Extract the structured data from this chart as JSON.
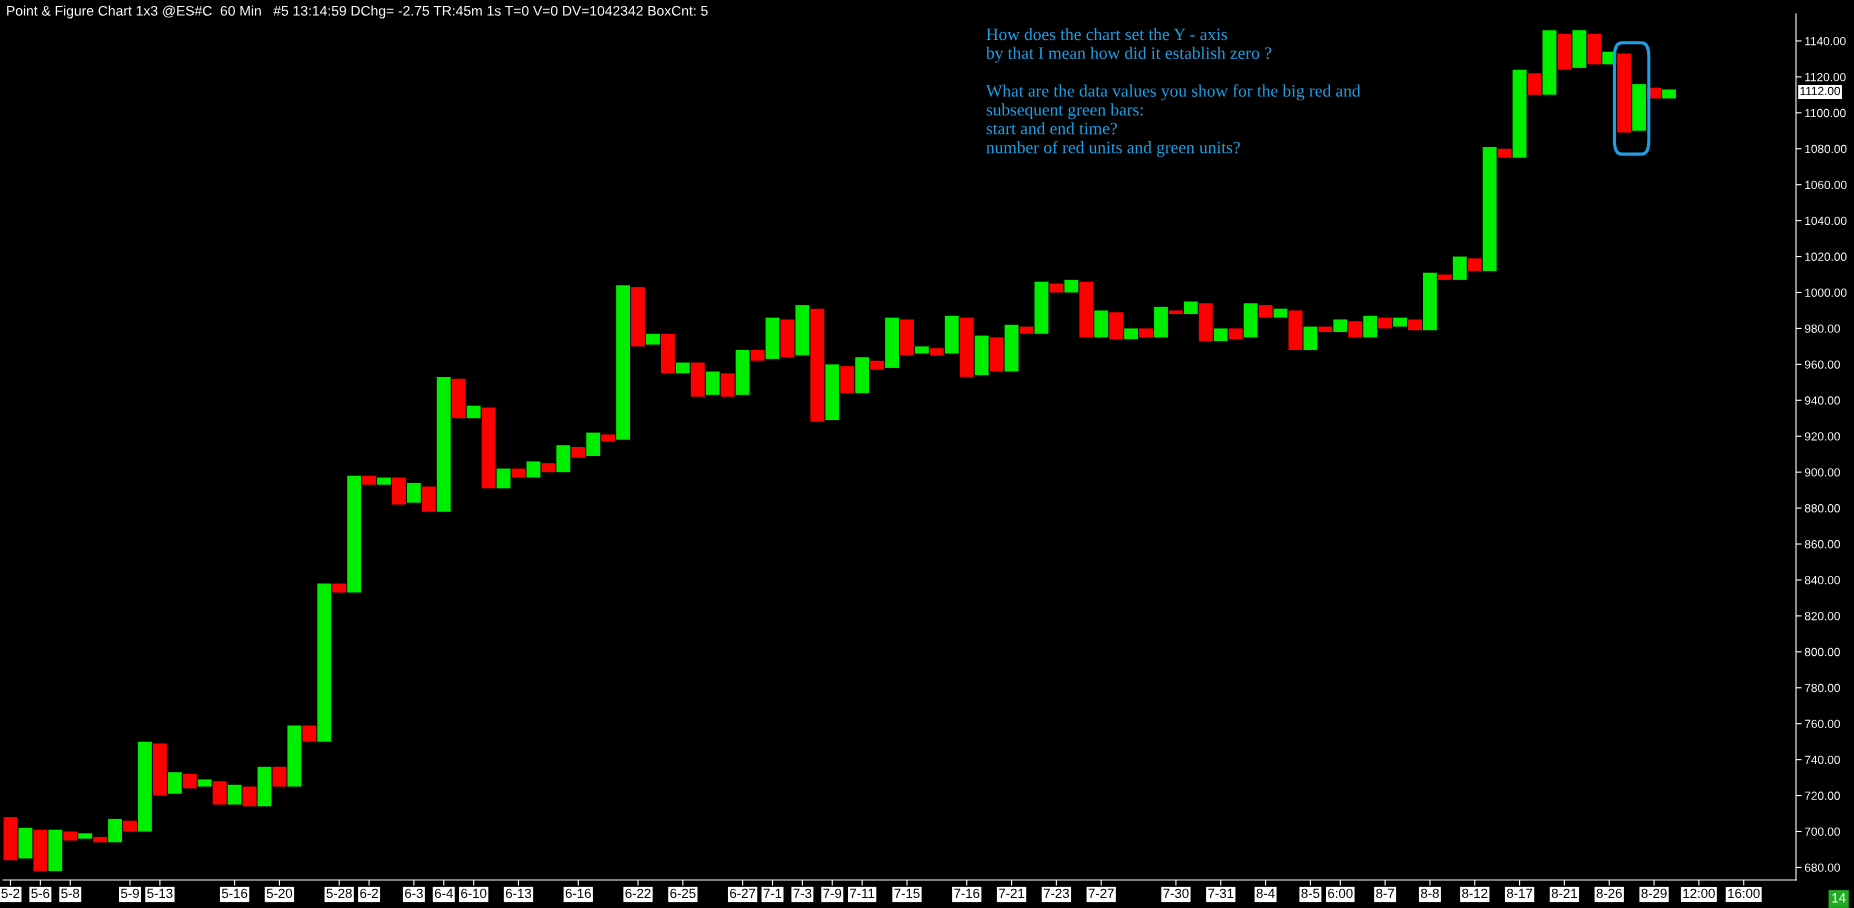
{
  "chart_data": {
    "type": "bar",
    "title": "Point & Figure Chart 1x3 @ES#C  60 Min   #5 13:14:59 DChg= -2.75 TR:45m 1s T=0 V=0 DV=1042342 BoxCnt: 5",
    "categories": [
      "5-2",
      null,
      "5-6",
      null,
      "5-8",
      null,
      null,
      null,
      "5-9",
      null,
      "5-13",
      null,
      null,
      null,
      null,
      "5-16",
      null,
      null,
      "5-20",
      null,
      null,
      null,
      "5-28",
      null,
      "6-2",
      null,
      null,
      "6-3",
      null,
      "6-4",
      null,
      "6-10",
      null,
      null,
      "6-13",
      null,
      null,
      null,
      "6-16",
      null,
      null,
      null,
      "6-22",
      null,
      null,
      "6-25",
      null,
      null,
      null,
      "6-27",
      null,
      "7-1",
      null,
      "7-3",
      null,
      "7-9",
      null,
      "7-11",
      null,
      null,
      "7-15",
      null,
      null,
      null,
      "7-16",
      null,
      null,
      "7-21",
      null,
      null,
      "7-23",
      null,
      null,
      "7-27",
      null,
      null,
      null,
      null,
      "7-30",
      null,
      null,
      "7-31",
      null,
      null,
      "8-4",
      null,
      null,
      "8-5",
      null,
      "6:00",
      null,
      null,
      "8-7",
      null,
      null,
      "8-8",
      null,
      null,
      "8-12",
      null,
      null,
      "8-17",
      null,
      null,
      "8-21",
      null,
      null,
      "8-26",
      null,
      null,
      "8-29",
      null,
      null,
      "12:00",
      null,
      null,
      "16:00",
      null,
      null,
      null
    ],
    "base": [
      684,
      685,
      678,
      678,
      695,
      696,
      694,
      694,
      700,
      700,
      720,
      721,
      724,
      725,
      715,
      715,
      714,
      714,
      725,
      725,
      750,
      750,
      833,
      833,
      893,
      893,
      882,
      883,
      878,
      878,
      930,
      930,
      891,
      891,
      897,
      897,
      900,
      900,
      908,
      909,
      917,
      918,
      970,
      971,
      955,
      955,
      942,
      943,
      942,
      943,
      962,
      963,
      964,
      965,
      928,
      929,
      944,
      944,
      957,
      958,
      965,
      966,
      965,
      966,
      953,
      954,
      956,
      956,
      977,
      977,
      1000,
      1000,
      975,
      975,
      974,
      974,
      975,
      975,
      988,
      988,
      973,
      973,
      974,
      975,
      986,
      986,
      968,
      968,
      978,
      978,
      975,
      975,
      980,
      981,
      979,
      979,
      1007,
      1007,
      1012,
      1012,
      1075,
      1075,
      1110,
      1110,
      1124,
      1125,
      1127,
      1127,
      1089,
      1090,
      1108,
      1108,
      null,
      null,
      null,
      null,
      null,
      null,
      null,
      null
    ],
    "values": [
      24,
      17,
      23,
      23,
      5,
      3,
      3,
      13,
      6,
      50,
      29,
      12,
      8,
      4,
      13,
      11,
      11,
      22,
      11,
      34,
      9,
      88,
      5,
      65,
      5,
      4,
      15,
      11,
      14,
      75,
      22,
      7,
      45,
      11,
      5,
      9,
      5,
      15,
      6,
      13,
      4,
      86,
      33,
      6,
      22,
      6,
      19,
      13,
      13,
      25,
      6,
      23,
      21,
      28,
      63,
      31,
      15,
      20,
      5,
      28,
      20,
      4,
      4,
      21,
      33,
      22,
      19,
      26,
      4,
      29,
      5,
      7,
      31,
      15,
      15,
      6,
      5,
      17,
      2,
      7,
      21,
      7,
      6,
      19,
      7,
      5,
      22,
      13,
      3,
      7,
      9,
      12,
      6,
      5,
      6,
      32,
      3,
      13,
      7,
      69,
      5,
      49,
      12,
      36,
      20,
      21,
      17,
      7,
      44,
      26,
      6,
      5,
      null,
      null,
      null,
      null,
      null,
      null,
      null,
      null
    ],
    "colors": [
      "#ff0000",
      "#00ee00",
      "#ff0000",
      "#00ee00",
      "#ff0000",
      "#00ee00",
      "#ff0000",
      "#00ee00",
      "#ff0000",
      "#00ee00",
      "#ff0000",
      "#00ee00",
      "#ff0000",
      "#00ee00",
      "#ff0000",
      "#00ee00",
      "#ff0000",
      "#00ee00",
      "#ff0000",
      "#00ee00",
      "#ff0000",
      "#00ee00",
      "#ff0000",
      "#00ee00",
      "#ff0000",
      "#00ee00",
      "#ff0000",
      "#00ee00",
      "#ff0000",
      "#00ee00",
      "#ff0000",
      "#00ee00",
      "#ff0000",
      "#00ee00",
      "#ff0000",
      "#00ee00",
      "#ff0000",
      "#00ee00",
      "#ff0000",
      "#00ee00",
      "#ff0000",
      "#00ee00",
      "#ff0000",
      "#00ee00",
      "#ff0000",
      "#00ee00",
      "#ff0000",
      "#00ee00",
      "#ff0000",
      "#00ee00",
      "#ff0000",
      "#00ee00",
      "#ff0000",
      "#00ee00",
      "#ff0000",
      "#00ee00",
      "#ff0000",
      "#00ee00",
      "#ff0000",
      "#00ee00",
      "#ff0000",
      "#00ee00",
      "#ff0000",
      "#00ee00",
      "#ff0000",
      "#00ee00",
      "#ff0000",
      "#00ee00",
      "#ff0000",
      "#00ee00",
      "#ff0000",
      "#00ee00",
      "#ff0000",
      "#00ee00",
      "#ff0000",
      "#00ee00",
      "#ff0000",
      "#00ee00",
      "#ff0000",
      "#00ee00",
      "#ff0000",
      "#00ee00",
      "#ff0000",
      "#00ee00",
      "#ff0000",
      "#00ee00",
      "#ff0000",
      "#00ee00",
      "#ff0000",
      "#00ee00",
      "#ff0000",
      "#00ee00",
      "#ff0000",
      "#00ee00",
      "#ff0000",
      "#00ee00",
      "#ff0000",
      "#00ee00",
      "#ff0000",
      "#00ee00",
      "#ff0000",
      "#00ee00",
      "#ff0000",
      "#00ee00",
      "#ff0000",
      "#00ee00",
      "#ff0000",
      "#00ee00",
      "#ff0000",
      "#00ee00",
      "#ff0000",
      "#00ee00",
      null,
      null,
      null,
      null,
      null,
      null,
      null,
      null
    ],
    "ylim": [
      673,
      1155
    ],
    "yticks": [
      {
        "value": 680,
        "label": "680.00"
      },
      {
        "value": 700,
        "label": "700.00"
      },
      {
        "value": 720,
        "label": "720.00"
      },
      {
        "value": 740,
        "label": "740.00"
      },
      {
        "value": 760,
        "label": "760.00"
      },
      {
        "value": 780,
        "label": "780.00"
      },
      {
        "value": 800,
        "label": "800.00"
      },
      {
        "value": 820,
        "label": "820.00"
      },
      {
        "value": 840,
        "label": "840.00"
      },
      {
        "value": 860,
        "label": "860.00"
      },
      {
        "value": 880,
        "label": "880.00"
      },
      {
        "value": 900,
        "label": "900.00"
      },
      {
        "value": 920,
        "label": "920.00"
      },
      {
        "value": 940,
        "label": "940.00"
      },
      {
        "value": 960,
        "label": "960.00"
      },
      {
        "value": 980,
        "label": "980.00"
      },
      {
        "value": 1000,
        "label": "1000.00"
      },
      {
        "value": 1020,
        "label": "1020.00"
      },
      {
        "value": 1040,
        "label": "1040.00"
      },
      {
        "value": 1060,
        "label": "1060.00"
      },
      {
        "value": 1080,
        "label": "1080.00"
      },
      {
        "value": 1100,
        "label": "1100.00"
      },
      {
        "value": 1120,
        "label": "1120.00"
      },
      {
        "value": 1140,
        "label": "1140.00"
      }
    ],
    "grid": false,
    "annotations": [
      "How does the chart set the Y - axis\nby that I mean how did it establish zero ?\n\nWhat are the data values you show for the big red and\nsubsequent green bars:\nstart and end time?\nnumber of red units and green units?",
      "14",
      "1112.00"
    ]
  }
}
